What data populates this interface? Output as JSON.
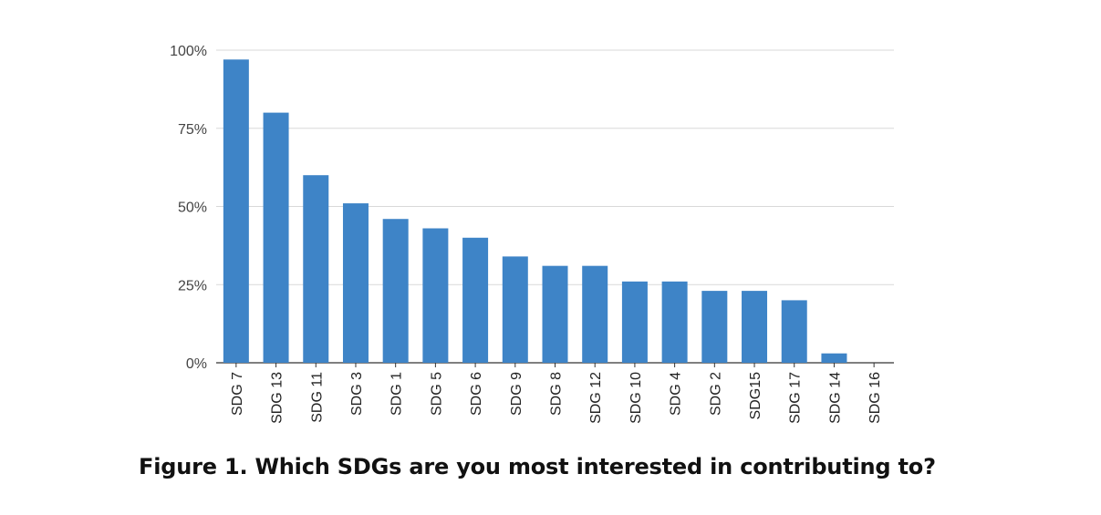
{
  "caption": "Figure 1. Which SDGs are you most interested in contributing to?",
  "chart_data": {
    "type": "bar",
    "title": "",
    "xlabel": "",
    "ylabel": "",
    "ylim": [
      0,
      100
    ],
    "y_ticks": [
      0,
      25,
      50,
      75,
      100
    ],
    "y_tick_labels": [
      "0%",
      "25%",
      "50%",
      "75%",
      "100%"
    ],
    "grid": true,
    "bar_color": "#3e84c7",
    "categories": [
      "SDG 7",
      "SDG 13",
      "SDG 11",
      "SDG 3",
      "SDG 1",
      "SDG 5",
      "SDG 6",
      "SDG 9",
      "SDG 8",
      "SDG 12",
      "SDG 10",
      "SDG 4",
      "SDG 2",
      "SDG15",
      "SDG 17",
      "SDG 14",
      "SDG 16"
    ],
    "values": [
      97,
      80,
      60,
      51,
      46,
      43,
      40,
      34,
      31,
      31,
      26,
      26,
      23,
      23,
      20,
      3,
      0
    ]
  }
}
